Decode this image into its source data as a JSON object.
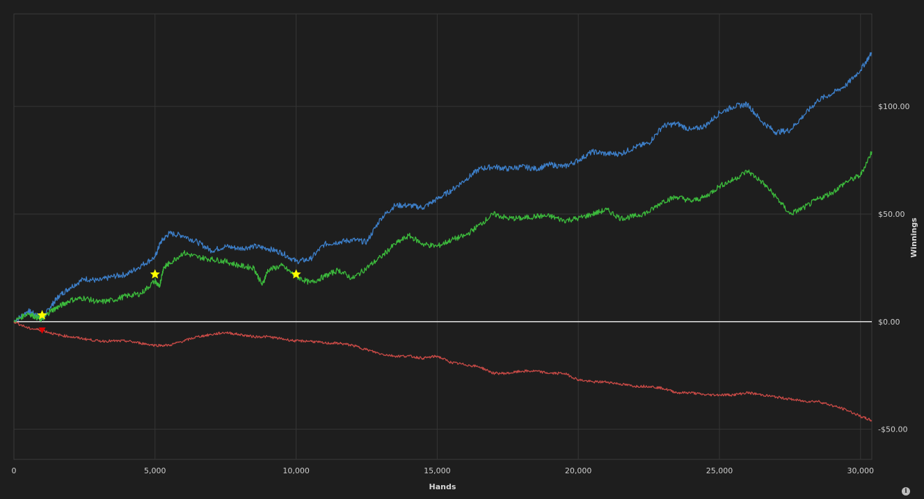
{
  "chart_data": {
    "type": "line",
    "xlabel": "Hands",
    "ylabel": "Winnings",
    "xlim": [
      0,
      30400
    ],
    "ylim": [
      -64,
      143
    ],
    "x_ticks": [
      {
        "value": 0,
        "label": "0"
      },
      {
        "value": 5000,
        "label": "5,000"
      },
      {
        "value": 10000,
        "label": "10,000"
      },
      {
        "value": 15000,
        "label": "15,000"
      },
      {
        "value": 20000,
        "label": "20,000"
      },
      {
        "value": 25000,
        "label": "25,000"
      },
      {
        "value": 30000,
        "label": "30,000"
      }
    ],
    "y_ticks": [
      {
        "value": 100,
        "label": "$100.00"
      },
      {
        "value": 50,
        "label": "$50.00"
      },
      {
        "value": 0,
        "label": "$0.00"
      },
      {
        "value": -50,
        "label": "-$50.00"
      }
    ],
    "grid": true,
    "legend": "none",
    "series": [
      {
        "color": "#3d7fc9",
        "x": [
          0,
          500,
          800,
          1000,
          1300,
          1600,
          2000,
          2500,
          3000,
          3500,
          4000,
          4500,
          5000,
          5200,
          5500,
          6000,
          6500,
          7000,
          7500,
          8000,
          8500,
          9000,
          9500,
          10000,
          10500,
          11000,
          11500,
          12000,
          12500,
          13000,
          13500,
          14000,
          14500,
          15000,
          15500,
          16000,
          16500,
          17000,
          17500,
          18000,
          18500,
          19000,
          19500,
          20000,
          20500,
          21000,
          21500,
          22000,
          22500,
          23000,
          23500,
          24000,
          24500,
          25000,
          25500,
          26000,
          26500,
          27000,
          27500,
          28000,
          28500,
          29000,
          29500,
          30000,
          30400
        ],
        "y": [
          0,
          5,
          3,
          1,
          7,
          12,
          16,
          20,
          19,
          21,
          22,
          26,
          30,
          37,
          41,
          40,
          37,
          33,
          35,
          34,
          35,
          34,
          32,
          28,
          29,
          36,
          37,
          38,
          37,
          48,
          54,
          54,
          53,
          57,
          61,
          66,
          71,
          72,
          71,
          72,
          71,
          73,
          72,
          75,
          79,
          78,
          78,
          81,
          83,
          91,
          92,
          89,
          91,
          97,
          100,
          101,
          93,
          88,
          89,
          96,
          103,
          106,
          110,
          117,
          125
        ]
      },
      {
        "color": "#3cba3c",
        "x": [
          0,
          500,
          800,
          1000,
          1300,
          1600,
          2000,
          2500,
          3000,
          3500,
          4000,
          4500,
          5000,
          5150,
          5300,
          5500,
          6000,
          6500,
          7000,
          7500,
          8000,
          8500,
          8800,
          9000,
          9500,
          10000,
          10500,
          11000,
          11500,
          12000,
          12500,
          13000,
          13500,
          14000,
          14500,
          15000,
          15500,
          16000,
          16500,
          17000,
          17500,
          18000,
          18500,
          19000,
          19500,
          20000,
          20500,
          21000,
          21500,
          22000,
          22500,
          23000,
          23500,
          24000,
          24500,
          25000,
          25500,
          26000,
          26500,
          27000,
          27500,
          28000,
          28500,
          29000,
          29500,
          30000,
          30400
        ],
        "y": [
          0,
          4,
          2,
          1,
          5,
          7,
          10,
          11,
          9,
          10,
          12,
          13,
          19,
          16,
          25,
          27,
          32,
          30,
          29,
          28,
          26,
          25,
          17,
          24,
          26,
          21,
          18,
          21,
          24,
          20,
          25,
          30,
          36,
          40,
          36,
          35,
          38,
          40,
          45,
          50,
          48,
          48,
          49,
          49,
          47,
          48,
          50,
          52,
          48,
          49,
          51,
          56,
          58,
          56,
          58,
          63,
          66,
          70,
          65,
          58,
          50,
          53,
          57,
          60,
          65,
          68,
          79
        ]
      },
      {
        "color": "#c94a46",
        "x": [
          0,
          500,
          1000,
          1500,
          2000,
          2500,
          3000,
          3500,
          4000,
          4500,
          5000,
          5500,
          6000,
          6500,
          7000,
          7500,
          8000,
          8500,
          9000,
          9500,
          10000,
          10500,
          11000,
          11500,
          12000,
          12500,
          13000,
          13500,
          14000,
          14500,
          15000,
          15500,
          16000,
          16500,
          17000,
          17500,
          18000,
          18500,
          19000,
          19500,
          20000,
          20500,
          21000,
          21500,
          22000,
          22500,
          23000,
          23500,
          24000,
          24500,
          25000,
          25500,
          26000,
          26500,
          27000,
          27500,
          28000,
          28500,
          29000,
          29500,
          30000,
          30400
        ],
        "y": [
          0,
          -3,
          -4,
          -6,
          -7,
          -8,
          -9,
          -9,
          -9,
          -10,
          -11,
          -11,
          -9,
          -7,
          -6,
          -5,
          -6,
          -7,
          -7,
          -8,
          -9,
          -9,
          -10,
          -10,
          -11,
          -13,
          -15,
          -16,
          -16,
          -17,
          -16,
          -19,
          -20,
          -21,
          -24,
          -24,
          -23,
          -23,
          -24,
          -24,
          -27,
          -28,
          -28,
          -29,
          -30,
          -30,
          -31,
          -33,
          -33,
          -34,
          -34,
          -34,
          -33,
          -34,
          -35,
          -36,
          -37,
          -37,
          -39,
          -41,
          -44,
          -46
        ]
      }
    ],
    "markers": [
      {
        "x": 1000,
        "y": 3,
        "shape": "star",
        "color": "#ffff00"
      },
      {
        "x": 5000,
        "y": 22,
        "shape": "star",
        "color": "#ffff00"
      },
      {
        "x": 10000,
        "y": 22,
        "shape": "star",
        "color": "#ffff00"
      },
      {
        "x": 1000,
        "y": -4,
        "shape": "triangle-down",
        "color": "#e00000"
      }
    ]
  },
  "info_icon": "info-icon",
  "info_glyph": "i"
}
